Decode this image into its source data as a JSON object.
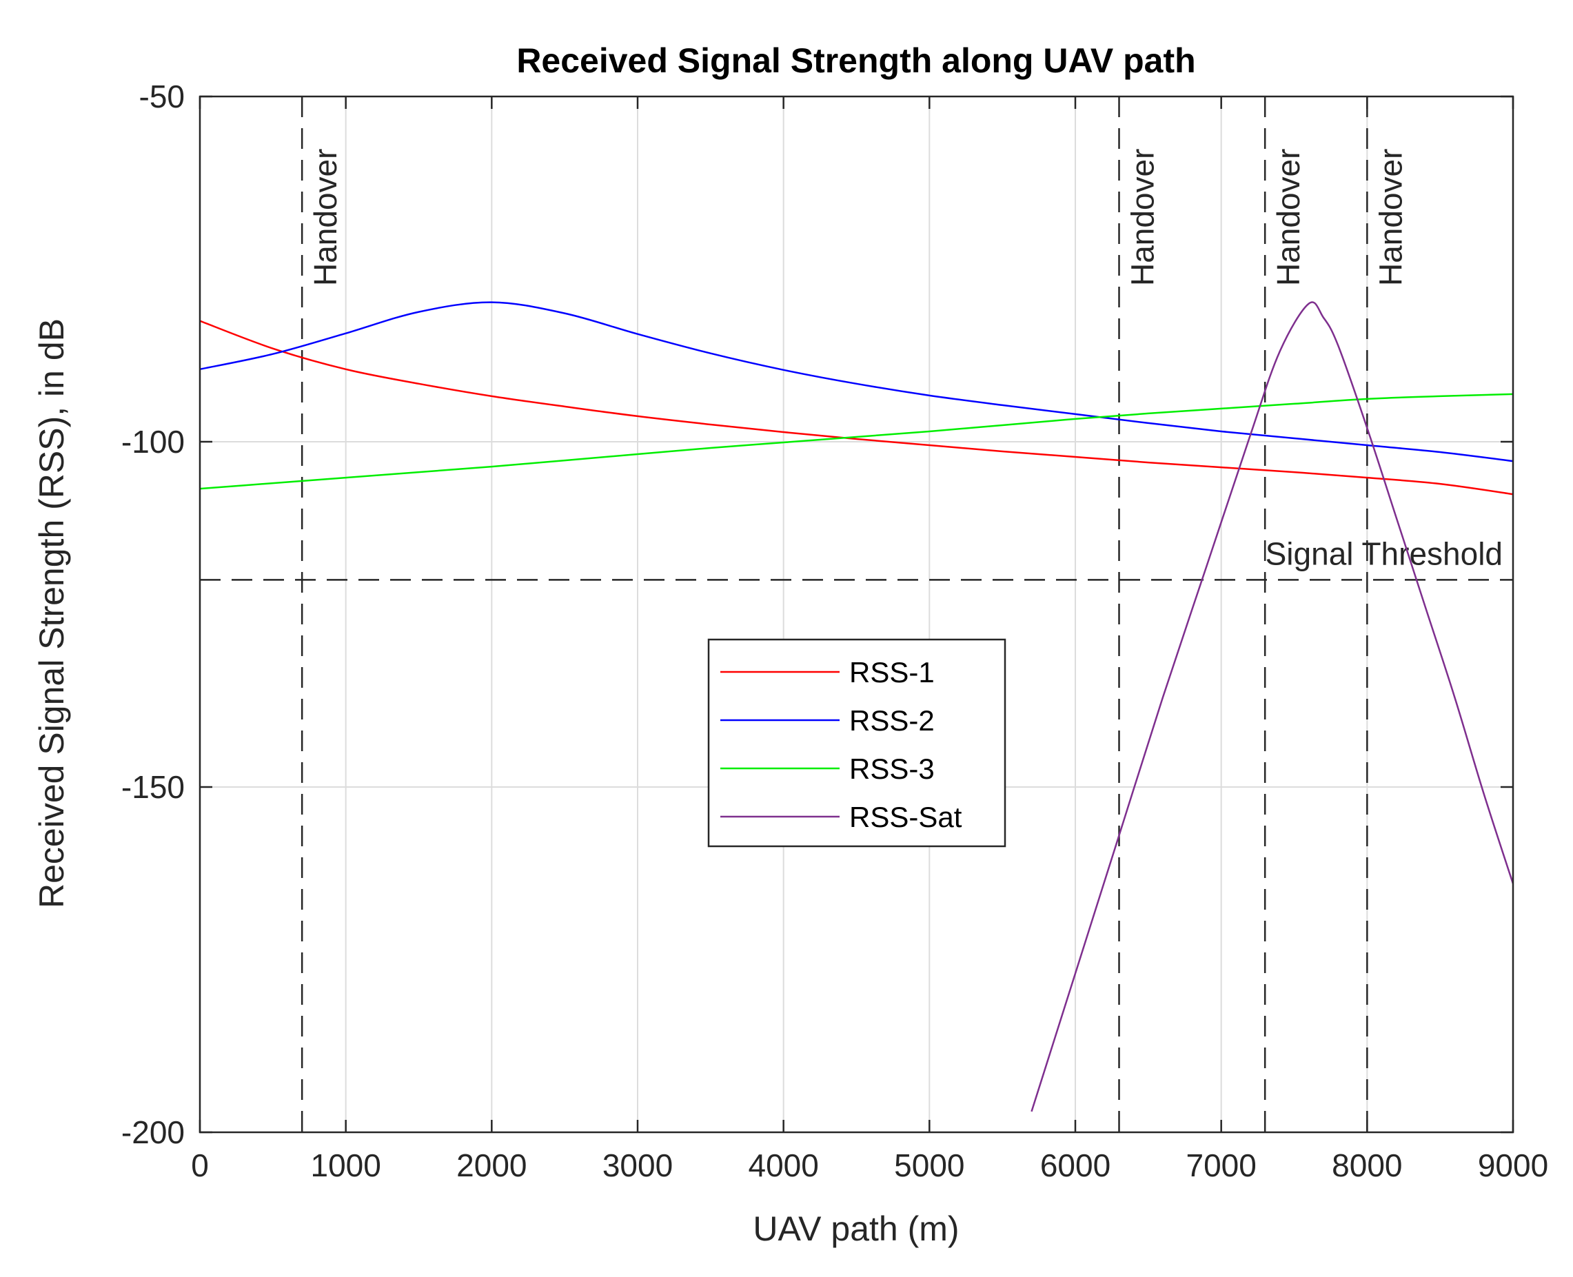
{
  "chart_data": {
    "type": "line",
    "title": "Received Signal Strength along UAV path",
    "xlabel": "UAV path (m)",
    "ylabel": "Received Signal Strength (RSS), in dB",
    "xlim": [
      0,
      9000
    ],
    "ylim": [
      -200,
      -50
    ],
    "xticks": [
      0,
      1000,
      2000,
      3000,
      4000,
      5000,
      6000,
      7000,
      8000,
      9000
    ],
    "yticks": [
      -200,
      -150,
      -100,
      -50
    ],
    "xtick_labels": [
      "0",
      "1000",
      "2000",
      "3000",
      "4000",
      "5000",
      "6000",
      "7000",
      "8000",
      "9000"
    ],
    "ytick_labels": [
      "-200",
      "-150",
      "-100",
      "-50"
    ],
    "grid": true,
    "legend_position": "center",
    "series": [
      {
        "name": "RSS-1",
        "color": "#ff0000",
        "x": [
          0,
          500,
          1000,
          1500,
          2000,
          2500,
          3000,
          3500,
          4000,
          4500,
          5000,
          5500,
          6000,
          6500,
          7000,
          7500,
          8000,
          8500,
          9000
        ],
        "y": [
          -82.5,
          -86.5,
          -89.5,
          -91.6,
          -93.4,
          -94.9,
          -96.3,
          -97.5,
          -98.6,
          -99.6,
          -100.5,
          -101.4,
          -102.2,
          -103,
          -103.7,
          -104.4,
          -105.2,
          -106.1,
          -107.6
        ]
      },
      {
        "name": "RSS-2",
        "color": "#0000ff",
        "x": [
          0,
          500,
          1000,
          1500,
          2000,
          2500,
          3000,
          3500,
          4000,
          4500,
          5000,
          5500,
          6000,
          6500,
          7000,
          7500,
          8000,
          8500,
          9000
        ],
        "y": [
          -89.5,
          -87.3,
          -84.3,
          -81.2,
          -79.8,
          -81.4,
          -84.4,
          -87.2,
          -89.6,
          -91.6,
          -93.3,
          -94.7,
          -96.0,
          -97.3,
          -98.5,
          -99.5,
          -100.5,
          -101.5,
          -102.8
        ]
      },
      {
        "name": "RSS-3",
        "color": "#00ee00",
        "x": [
          0,
          500,
          1000,
          1500,
          2000,
          2500,
          3000,
          3500,
          4000,
          4500,
          5000,
          5500,
          6000,
          6500,
          7000,
          7500,
          8000,
          8500,
          9000
        ],
        "y": [
          -106.8,
          -106,
          -105.2,
          -104.4,
          -103.6,
          -102.7,
          -101.8,
          -100.9,
          -100.1,
          -99.3,
          -98.5,
          -97.6,
          -96.7,
          -95.9,
          -95.2,
          -94.5,
          -93.8,
          -93.4,
          -93.1
        ]
      },
      {
        "name": "RSS-Sat",
        "color": "#7e2f8e",
        "x": [
          5700,
          6000,
          6300,
          6600,
          6900,
          7200,
          7400,
          7600,
          7700,
          7800,
          8000,
          8200,
          8400,
          8600,
          8800,
          9000
        ],
        "y": [
          -197,
          -177,
          -157,
          -137,
          -118,
          -99,
          -87,
          -80,
          -82,
          -86,
          -98,
          -111,
          -124,
          -137,
          -151,
          -164
        ]
      }
    ],
    "handover_lines": [
      {
        "x": 700,
        "label": "Handover"
      },
      {
        "x": 6300,
        "label": "Handover"
      },
      {
        "x": 7300,
        "label": "Handover"
      },
      {
        "x": 8000,
        "label": "Handover"
      }
    ],
    "threshold": {
      "y": -120,
      "label": "Signal Threshold"
    }
  }
}
